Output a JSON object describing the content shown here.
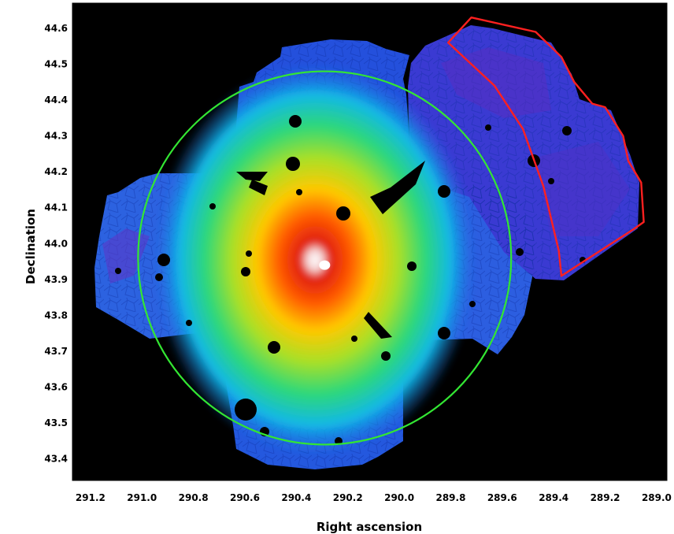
{
  "chart_data": {
    "type": "heatmap",
    "title": "",
    "xlabel": "Right ascension",
    "ylabel": "Declination",
    "xlim": [
      291.27,
      288.96
    ],
    "ylim": [
      43.34,
      44.67
    ],
    "x_ticks": [
      291.2,
      291.0,
      290.8,
      290.6,
      290.4,
      290.2,
      290.0,
      289.8,
      289.6,
      289.4,
      289.2,
      289.0
    ],
    "x_tick_labels": [
      "291.2",
      "291.0",
      "290.8",
      "290.6",
      "290.4",
      "290.2",
      "290.0",
      "289.8",
      "289.6",
      "289.4",
      "289.2",
      "289.0"
    ],
    "y_ticks": [
      43.4,
      43.5,
      43.6,
      43.7,
      43.8,
      43.9,
      44.0,
      44.1,
      44.2,
      44.3,
      44.4,
      44.5,
      44.6
    ],
    "y_tick_labels": [
      "43.4",
      "43.5",
      "43.6",
      "43.7",
      "43.8",
      "43.9",
      "44.0",
      "44.1",
      "44.2",
      "44.3",
      "44.4",
      "44.5",
      "44.6"
    ],
    "background_color": "#000000",
    "colormap": "rainbow",
    "peak": {
      "ra": 290.29,
      "dec": 43.94
    },
    "circle": {
      "ra": 290.29,
      "dec": 43.96,
      "radius_deg": 0.52,
      "color": "#33e633"
    },
    "sector_region": {
      "color": "#ff2020",
      "vertices": [
        [
          289.81,
          44.56
        ],
        [
          289.72,
          44.63
        ],
        [
          289.47,
          44.59
        ],
        [
          289.37,
          44.52
        ],
        [
          289.32,
          44.45
        ],
        [
          289.25,
          44.39
        ],
        [
          289.2,
          44.38
        ],
        [
          289.13,
          44.3
        ],
        [
          289.11,
          44.23
        ],
        [
          289.06,
          44.17
        ],
        [
          289.05,
          44.06
        ],
        [
          289.09,
          44.04
        ],
        [
          289.37,
          43.91
        ],
        [
          289.38,
          43.98
        ],
        [
          289.44,
          44.16
        ],
        [
          289.52,
          44.32
        ],
        [
          289.63,
          44.44
        ],
        [
          289.81,
          44.56
        ]
      ]
    },
    "grid": false,
    "legend": "none"
  }
}
